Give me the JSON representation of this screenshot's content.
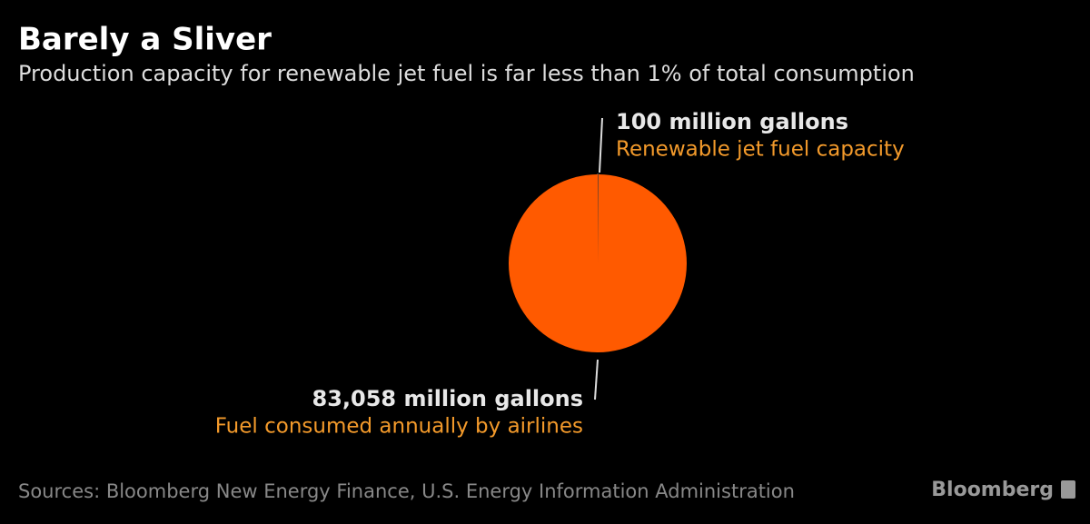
{
  "chart_data": {
    "type": "pie",
    "title": "Barely a Sliver",
    "subtitle": "Production capacity for renewable jet fuel is far less than 1% of total consumption",
    "categories": [
      "Renewable jet fuel capacity",
      "Fuel consumed annually by airlines"
    ],
    "values": [
      100,
      83058
    ],
    "value_labels": [
      "100 million gallons",
      "83,058 million gallons"
    ],
    "colors": [
      "#3a3a3a",
      "#ff5a00"
    ],
    "source": "Sources: Bloomberg New Energy Finance, U.S. Energy Information Administration",
    "brand": "Bloomberg"
  }
}
